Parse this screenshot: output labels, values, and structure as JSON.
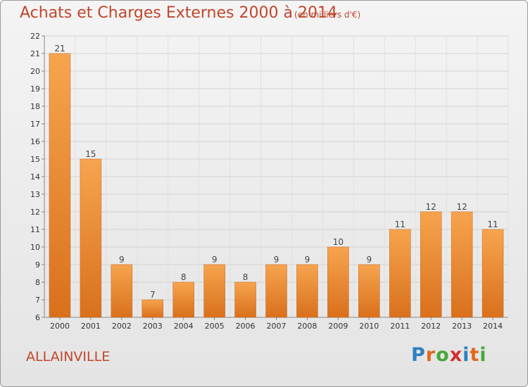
{
  "header": {
    "title": "Achats et Charges Externes 2000 à 2014",
    "subtitle": "(en milliers d'€)"
  },
  "footer": {
    "commune": "ALLAINVILLE",
    "logo_letters": [
      "P",
      "r",
      "o",
      "x",
      "i",
      "t",
      "i"
    ],
    "logo_colors": [
      "#2f7fc1",
      "#e2681f",
      "#46a83c",
      "#d0312d",
      "#2f7fc1",
      "#e2681f",
      "#46a83c"
    ]
  },
  "chart_data": {
    "type": "bar",
    "title": "Achats et Charges Externes 2000 à 2014",
    "subtitle": "(en milliers d'€)",
    "xlabel": "",
    "ylabel": "",
    "categories": [
      "2000",
      "2001",
      "2002",
      "2003",
      "2004",
      "2005",
      "2006",
      "2007",
      "2008",
      "2009",
      "2010",
      "2011",
      "2012",
      "2013",
      "2014"
    ],
    "values": [
      21,
      15,
      9,
      7,
      8,
      9,
      8,
      9,
      9,
      10,
      9,
      11,
      12,
      12,
      11
    ],
    "ylim": [
      6,
      22
    ],
    "yticks": [
      6,
      7,
      8,
      9,
      10,
      11,
      12,
      13,
      14,
      15,
      16,
      17,
      18,
      19,
      20,
      21,
      22
    ],
    "grid": true,
    "bar_color": "#f0922e",
    "bar_color_dark": "#d9701c"
  }
}
